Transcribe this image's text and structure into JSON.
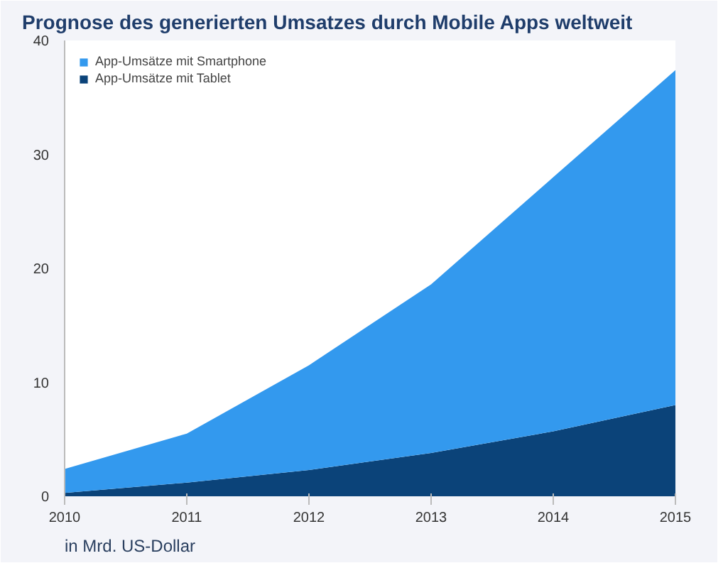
{
  "chart_data": {
    "type": "area",
    "title": "Prognose des generierten Umsatzes durch Mobile Apps weltweit",
    "stacked": true,
    "x": [
      2010,
      2011,
      2012,
      2013,
      2014,
      2015
    ],
    "series": [
      {
        "name": "App-Umsätze mit Tablet",
        "color": "#0b4379",
        "values": [
          0.3,
          1.2,
          2.3,
          3.8,
          5.7,
          8.0
        ]
      },
      {
        "name": "App-Umsätze mit Smartphone",
        "color": "#3399ee",
        "values": [
          2.1,
          4.3,
          9.2,
          14.8,
          22.3,
          29.4
        ]
      }
    ],
    "xlim": [
      2010,
      2015
    ],
    "xticks": [
      2010,
      2011,
      2012,
      2013,
      2014,
      2015
    ],
    "ylim": [
      0,
      40
    ],
    "yticks": [
      0,
      10,
      20,
      30,
      40
    ],
    "grid": false,
    "legend": "top left",
    "annotations": [
      "in Mrd. US-Dollar"
    ]
  }
}
